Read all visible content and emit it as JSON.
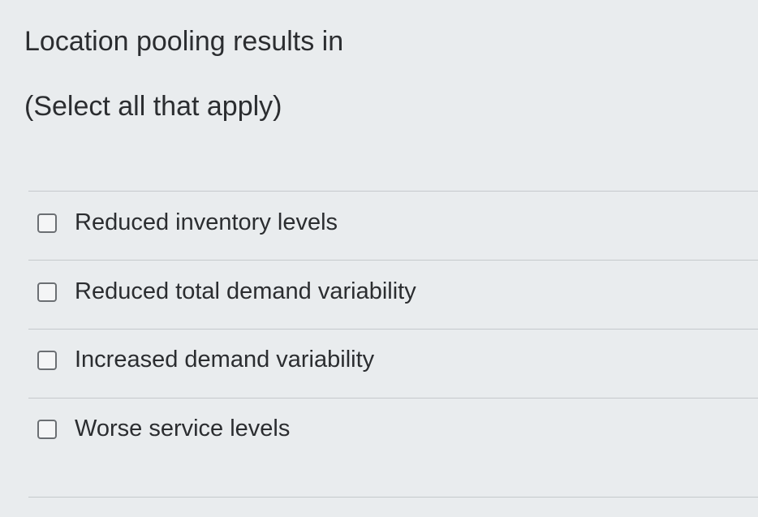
{
  "question": "Location pooling results in",
  "instruction": "(Select all that apply)",
  "options": [
    {
      "label": "Reduced inventory levels",
      "checked": false
    },
    {
      "label": "Reduced total demand variability",
      "checked": false
    },
    {
      "label": "Increased demand variability",
      "checked": false
    },
    {
      "label": "Worse service levels",
      "checked": false
    }
  ]
}
